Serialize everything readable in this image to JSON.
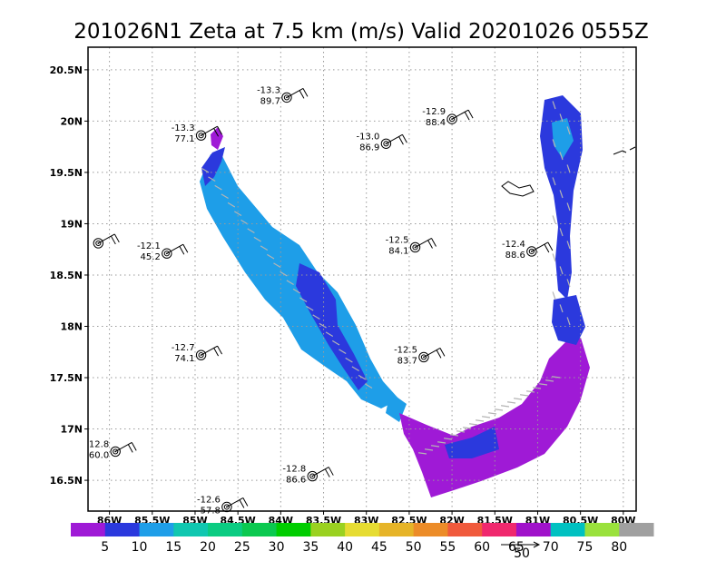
{
  "chart_data": {
    "type": "heatmap",
    "title": "201026N1 Zeta at 7.5 km (m/s) Valid 20201026 0555Z",
    "x_ticks": [
      "86W",
      "85.5W",
      "85W",
      "84.5W",
      "84W",
      "83.5W",
      "83W",
      "82.5W",
      "82W",
      "81.5W",
      "81W",
      "80.5W",
      "80W"
    ],
    "y_ticks": [
      "20.5N",
      "20N",
      "19.5N",
      "19N",
      "18.5N",
      "18N",
      "17.5N",
      "17N",
      "16.5N"
    ],
    "xlim": [
      -86.25,
      -79.85
    ],
    "ylim": [
      16.2,
      20.72
    ],
    "grid": true,
    "colorbar": {
      "labels": [
        "5",
        "10",
        "15",
        "20",
        "25",
        "30",
        "35",
        "40",
        "45",
        "50",
        "55",
        "60",
        "65",
        "70",
        "75",
        "80"
      ],
      "colors": [
        "#9f1ad6",
        "#2b39dd",
        "#1e9ee8",
        "#10c7b0",
        "#0bcc82",
        "#0bc950",
        "#00cd00",
        "#9ad120",
        "#e6dc32",
        "#e6b428",
        "#ec8c28",
        "#f05a3c",
        "#f0286e",
        "#a012ca",
        "#00c1c1",
        "#9ae13c",
        "#a0a0a0"
      ]
    },
    "vector_reference": {
      "label": "50",
      "value": 50
    },
    "stations": [
      {
        "lon": -83.93,
        "lat": 20.23,
        "top": "-13.3",
        "bottom": "89.7"
      },
      {
        "lon": -84.93,
        "lat": 19.86,
        "top": "-13.3",
        "bottom": "77.1"
      },
      {
        "lon": -82.77,
        "lat": 19.78,
        "top": "-13.0",
        "bottom": "86.9"
      },
      {
        "lon": -82.0,
        "lat": 20.02,
        "top": "-12.9",
        "bottom": "88.4"
      },
      {
        "lon": -86.13,
        "lat": 18.81,
        "top": "",
        "bottom": ""
      },
      {
        "lon": -85.33,
        "lat": 18.71,
        "top": "-12.1",
        "bottom": "45.2"
      },
      {
        "lon": -82.43,
        "lat": 18.77,
        "top": "-12.5",
        "bottom": "84.1"
      },
      {
        "lon": -81.07,
        "lat": 18.73,
        "top": "-12.4",
        "bottom": "88.6"
      },
      {
        "lon": -84.93,
        "lat": 17.72,
        "top": "-12.7",
        "bottom": "74.1"
      },
      {
        "lon": -82.33,
        "lat": 17.7,
        "top": "-12.5",
        "bottom": "83.7"
      },
      {
        "lon": -85.93,
        "lat": 16.78,
        "top": "12.8",
        "bottom": "60.0"
      },
      {
        "lon": -83.63,
        "lat": 16.54,
        "top": "-12.8",
        "bottom": "86.6"
      },
      {
        "lon": -84.63,
        "lat": 16.24,
        "top": "-12.6",
        "bottom": "57.8"
      }
    ]
  }
}
